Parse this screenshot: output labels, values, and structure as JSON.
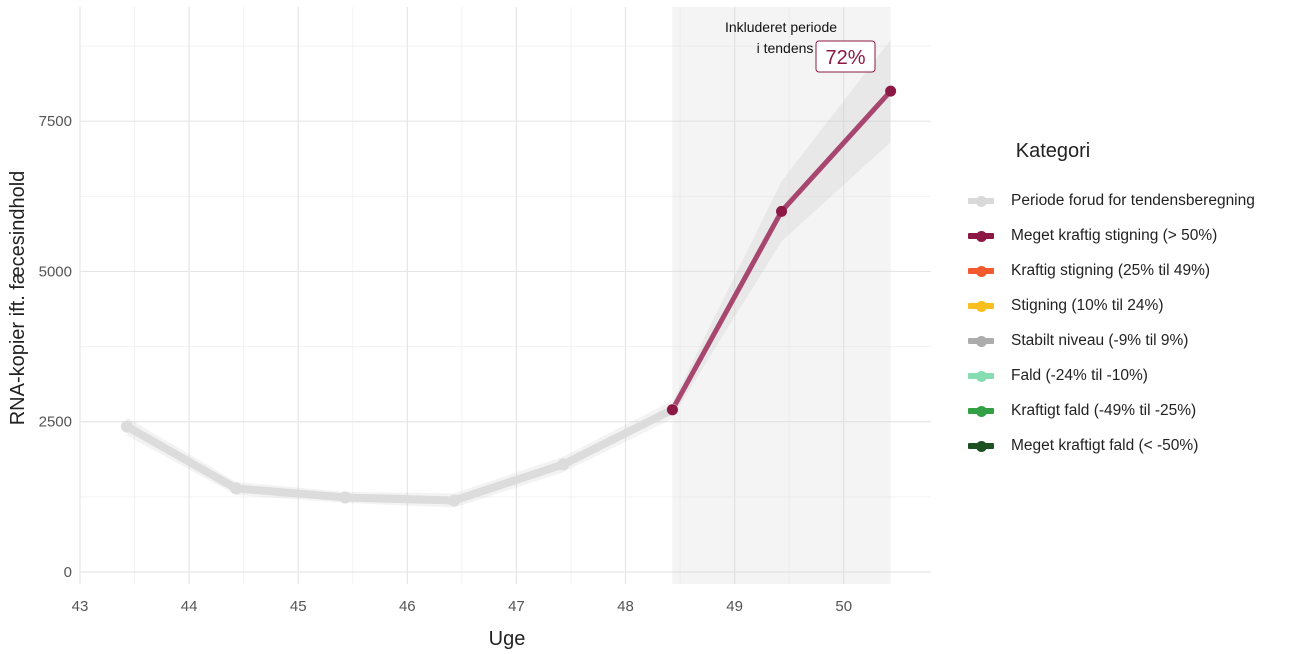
{
  "chart_data": {
    "type": "line",
    "xlabel": "Uge",
    "ylabel": "RNA-kopier ift. fæcesindhold",
    "xlim": [
      43,
      50.8
    ],
    "ylim": [
      -200,
      9400
    ],
    "x_ticks": [
      43,
      44,
      45,
      46,
      47,
      48,
      49,
      50
    ],
    "y_ticks": [
      0,
      2500,
      5000,
      7500
    ],
    "grid": true,
    "shaded_region": {
      "x_start": 48.43,
      "x_end": 50.43,
      "label_line1": "Inkluderet periode",
      "label_line2": "i tendens"
    },
    "annotation": {
      "text": "72%",
      "x": 50,
      "y": 8650
    },
    "series": [
      {
        "name": "Periode forud for tendensberegning",
        "color": "#dcdcdc",
        "x": [
          43.43,
          44.43,
          45.43,
          46.43,
          47.43,
          48.43
        ],
        "y": [
          2420,
          1390,
          1240,
          1190,
          1790,
          2700
        ],
        "band_halfwidth": [
          150,
          110,
          90,
          120,
          130,
          150
        ]
      },
      {
        "name": "Meget kraftig stigning (> 50%)",
        "color": "#a7466f",
        "point_color": "#8b1845",
        "x": [
          48.43,
          49.43,
          50.43
        ],
        "y": [
          2700,
          6000,
          8000
        ],
        "band_halfwidth": [
          120,
          500,
          850
        ]
      }
    ]
  },
  "legend": {
    "title": "Kategori",
    "items": [
      {
        "label": "Periode forud for tendensberegning",
        "color": "#d9d9d9"
      },
      {
        "label": "Meget kraftig stigning (> 50%)",
        "color": "#8b1845"
      },
      {
        "label": "Kraftig stigning (25% til 49%)",
        "color": "#f2592f"
      },
      {
        "label": "Stigning (10% til 24%)",
        "color": "#f8bf1f"
      },
      {
        "label": "Stabilt niveau (-9% til 9%)",
        "color": "#acacac"
      },
      {
        "label": "Fald (-24% til -10%)",
        "color": "#85ddb1"
      },
      {
        "label": "Kraftigt fald (-49% til -25%)",
        "color": "#33a046"
      },
      {
        "label": "Meget kraftigt fald (< -50%)",
        "color": "#1c5121"
      }
    ]
  }
}
